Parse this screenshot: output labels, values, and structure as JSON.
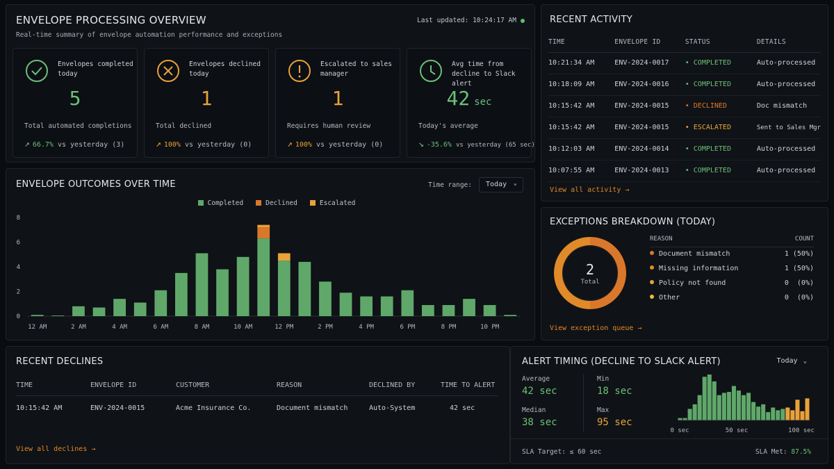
{
  "overview": {
    "title": "ENVELOPE PROCESSING OVERVIEW",
    "subtitle": "Real-time summary of envelope automation performance and exceptions",
    "last_updated": "Last updated: 10:24:17 AM",
    "kpis": [
      {
        "label": "Envelopes completed today",
        "value": "5",
        "unit": "",
        "desc": "Total automated completions",
        "trend_value": "66.7%",
        "trend_rest": "vs yesterday (3)",
        "trend_dir": "up",
        "color": "#6cc07a",
        "trend_color": "#6cc07a",
        "icon": "check-circle-icon"
      },
      {
        "label": "Envelopes declined today",
        "value": "1",
        "unit": "",
        "desc": "Total declined",
        "trend_value": "100%",
        "trend_rest": "vs yesterday (0)",
        "trend_dir": "up",
        "color": "#e8a23a",
        "trend_color": "#e8a23a",
        "icon": "x-circle-icon"
      },
      {
        "label": "Escalated to sales manager",
        "value": "1",
        "unit": "",
        "desc": "Requires human review",
        "trend_value": "100%",
        "trend_rest": "vs yesterday (0)",
        "trend_dir": "up",
        "color": "#e8a23a",
        "trend_color": "#e8a23a",
        "icon": "alert-circle-icon"
      },
      {
        "label": "Avg time from decline to Slack alert",
        "value": "42",
        "unit": "sec",
        "desc": "Today's average",
        "trend_value": "-35.6%",
        "trend_rest": "vs yesterday (65 sec)",
        "trend_dir": "down",
        "color": "#6cc07a",
        "trend_color": "#6cc07a",
        "icon": "clock-icon"
      }
    ]
  },
  "outcomes": {
    "title": "ENVELOPE OUTCOMES OVER TIME",
    "range_label": "Time range:",
    "range_value": "Today"
  },
  "chart_data": {
    "type": "bar",
    "stacked": true,
    "x_tick_labels": [
      "12 AM",
      "2 AM",
      "4 AM",
      "6 AM",
      "8 AM",
      "10 AM",
      "12 PM",
      "2 PM",
      "4 PM",
      "6 PM",
      "8 PM",
      "10 PM"
    ],
    "y_ticks": [
      0,
      2,
      4,
      6,
      8
    ],
    "ylim": [
      0,
      8
    ],
    "legend_position": "top-center",
    "series": [
      {
        "name": "Completed",
        "color": "#5fa86a",
        "values": [
          0.1,
          0.05,
          0.8,
          0.7,
          1.4,
          1.1,
          2.1,
          3.5,
          5.1,
          3.8,
          4.8,
          6.3,
          4.5,
          4.4,
          2.8,
          1.9,
          1.6,
          1.6,
          2.1,
          0.9,
          0.9,
          1.4,
          0.9,
          0.1
        ]
      },
      {
        "name": "Declined",
        "color": "#d9782a",
        "values": [
          0,
          0,
          0,
          0,
          0,
          0,
          0,
          0,
          0,
          0,
          0,
          0.9,
          0,
          0,
          0,
          0,
          0,
          0,
          0,
          0,
          0,
          0,
          0,
          0
        ]
      },
      {
        "name": "Escalated",
        "color": "#e8a23a",
        "values": [
          0,
          0,
          0,
          0,
          0,
          0,
          0,
          0,
          0,
          0,
          0,
          0.2,
          0.6,
          0,
          0,
          0,
          0,
          0,
          0,
          0,
          0,
          0,
          0,
          0
        ]
      }
    ]
  },
  "activity": {
    "title": "RECENT ACTIVITY",
    "headers": [
      "TIME",
      "ENVELOPE ID",
      "STATUS",
      "DETAILS"
    ],
    "rows": [
      {
        "time": "10:21:34 AM",
        "id": "ENV-2024-0017",
        "status": "COMPLETED",
        "status_color": "#6cc07a",
        "details": "Auto-processed"
      },
      {
        "time": "10:18:09 AM",
        "id": "ENV-2024-0016",
        "status": "COMPLETED",
        "status_color": "#6cc07a",
        "details": "Auto-processed"
      },
      {
        "time": "10:15:42 AM",
        "id": "ENV-2024-0015",
        "status": "DECLINED",
        "status_color": "#e07a2a",
        "details": "Doc mismatch"
      },
      {
        "time": "10:15:42 AM",
        "id": "ENV-2024-0015",
        "status": "ESCALATED",
        "status_color": "#eaa63a",
        "details": "Sent to Sales Mgr"
      },
      {
        "time": "10:12:03 AM",
        "id": "ENV-2024-0014",
        "status": "COMPLETED",
        "status_color": "#6cc07a",
        "details": "Auto-processed"
      },
      {
        "time": "10:07:55 AM",
        "id": "ENV-2024-0013",
        "status": "COMPLETED",
        "status_color": "#6cc07a",
        "details": "Auto-processed"
      }
    ],
    "view_all": "View all activity →"
  },
  "exceptions": {
    "title": "EXCEPTIONS BREAKDOWN (TODAY)",
    "total_value": "2",
    "total_label": "Total",
    "headers": [
      "REASON",
      "COUNT"
    ],
    "rows": [
      {
        "reason": "Document mismatch",
        "count": "1 (50%)",
        "color": "#d9782a",
        "fraction": 0.5
      },
      {
        "reason": "Missing information",
        "count": "1 (50%)",
        "color": "#e08a2a",
        "fraction": 0.5
      },
      {
        "reason": "Policy not found",
        "count": "0  (0%)",
        "color": "#e8a23a",
        "fraction": 0
      },
      {
        "reason": "Other",
        "count": "0  (0%)",
        "color": "#f0b83a",
        "fraction": 0
      }
    ],
    "view_all": "View exception queue →"
  },
  "declines": {
    "title": "RECENT DECLINES",
    "headers": [
      "TIME",
      "ENVELOPE ID",
      "CUSTOMER",
      "REASON",
      "DECLINED BY",
      "TIME TO ALERT"
    ],
    "rows": [
      {
        "time": "10:15:42 AM",
        "id": "ENV-2024-0015",
        "customer": "Acme Insurance Co.",
        "reason": "Document mismatch",
        "by": "Auto-System",
        "alert": "42 sec"
      }
    ],
    "view_all": "View all declines →"
  },
  "timing": {
    "title": "ALERT TIMING (DECLINE TO SLACK ALERT)",
    "range_value": "Today",
    "stats": [
      {
        "key": "Average",
        "value": "42 sec",
        "color": "#6cc07a"
      },
      {
        "key": "Min",
        "value": "18 sec",
        "color": "#6cc07a"
      },
      {
        "key": "Median",
        "value": "38 sec",
        "color": "#6cc07a"
      },
      {
        "key": "Max",
        "value": "95 sec",
        "color": "#e8a23a"
      }
    ],
    "hist_ticks": [
      "0 sec",
      "50 sec",
      "100 sec"
    ],
    "hist_bins": [
      0.05,
      0.05,
      0.25,
      0.35,
      0.55,
      0.95,
      1.0,
      0.85,
      0.55,
      0.6,
      0.62,
      0.75,
      0.65,
      0.55,
      0.6,
      0.4,
      0.3,
      0.35,
      0.18,
      0.28,
      0.22,
      0.25,
      0.28,
      0.22,
      0.45,
      0.2,
      0.48
    ],
    "hist_colors_from_bin": 22,
    "sla_target": "SLA Target: ≤ 60 sec",
    "sla_met_label": "SLA Met:",
    "sla_met_value": "87.5%"
  }
}
